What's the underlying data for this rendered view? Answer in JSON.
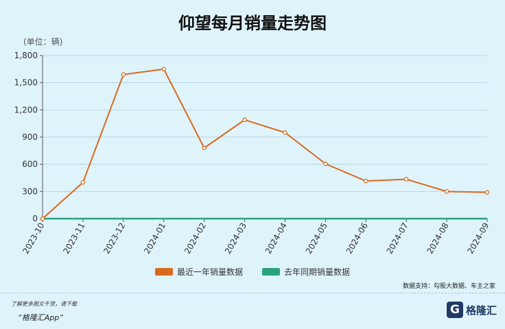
{
  "title": "仰望每月销量走势图",
  "unit_label": "(单位：辆)",
  "source": "数据支持：勾股大数据、车主之家",
  "footer": {
    "note": "了解更多图文干货，请下载",
    "app": "“格隆汇App”",
    "logo_text": "格隆汇",
    "logo_mark": "G"
  },
  "colors": {
    "recent": "#d86a1e",
    "last_year": "#2aa37a",
    "grid": "#b7d6e2",
    "axis": "#555555"
  },
  "chart_data": {
    "type": "line",
    "title": "仰望每月销量走势图",
    "ylabel": "(单位：辆)",
    "x": [
      "2023-10",
      "2023-11",
      "2023-12",
      "2024-01",
      "2024-02",
      "2024-03",
      "2024-04",
      "2024-05",
      "2024-06",
      "2024-07",
      "2024-08",
      "2024-09"
    ],
    "ylim": [
      0,
      1800
    ],
    "yticks": [
      0,
      300,
      600,
      900,
      1200,
      1500,
      1800
    ],
    "ytick_labels": [
      "0",
      "300",
      "600",
      "900",
      "1,200",
      "1,500",
      "1,800"
    ],
    "grid": true,
    "legend_position": "bottom",
    "series": [
      {
        "name": "最近一年销量数据",
        "values": [
          0,
          400,
          1590,
          1650,
          780,
          1090,
          950,
          605,
          415,
          435,
          300,
          290
        ]
      },
      {
        "name": "去年同期销量数据",
        "values": [
          0,
          0,
          0,
          0,
          0,
          0,
          0,
          0,
          0,
          0,
          0,
          0
        ]
      }
    ]
  }
}
